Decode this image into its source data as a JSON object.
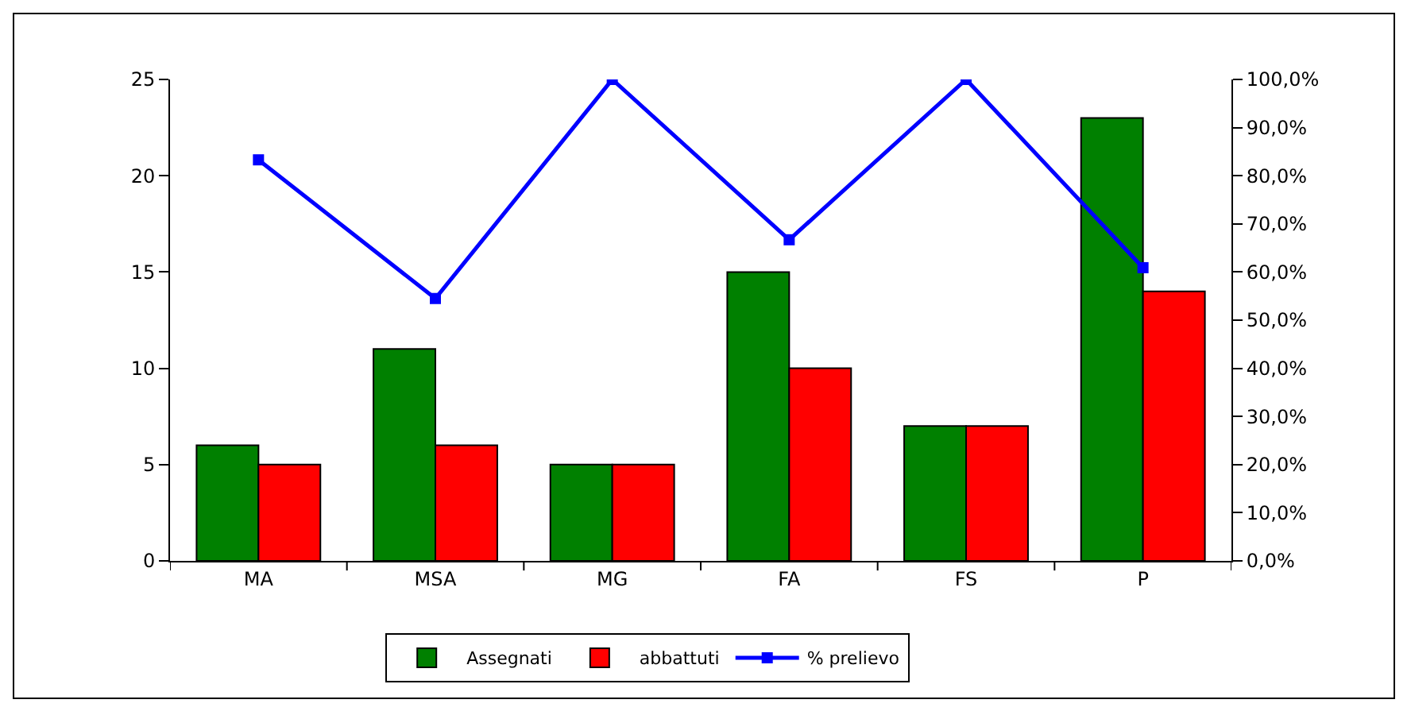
{
  "chart_data": {
    "type": "bar",
    "categories": [
      "MA",
      "MSA",
      "MG",
      "FA",
      "FS",
      "P"
    ],
    "series": [
      {
        "name": "Assegnati",
        "color": "#008000",
        "values": [
          6,
          11,
          5,
          15,
          7,
          23
        ]
      },
      {
        "name": "abbattuti",
        "color": "#ff0000",
        "values": [
          5,
          6,
          5,
          10,
          7,
          14
        ]
      },
      {
        "name": "% prelievo",
        "type": "line",
        "axis": "y2",
        "color": "#0000ff",
        "marker": "square",
        "line_style": "solid",
        "values": [
          83.3,
          54.5,
          100,
          66.7,
          100,
          60.9
        ]
      }
    ],
    "ylim": [
      0,
      25
    ],
    "yticks": [
      0,
      5,
      10,
      15,
      20,
      25
    ],
    "y2lim": [
      0,
      100
    ],
    "y2ticks": [
      {
        "value": 0,
        "label": "0,0%"
      },
      {
        "value": 10,
        "label": "10,0%"
      },
      {
        "value": 20,
        "label": "20,0%"
      },
      {
        "value": 30,
        "label": "30,0%"
      },
      {
        "value": 40,
        "label": "40,0%"
      },
      {
        "value": 50,
        "label": "50,0%"
      },
      {
        "value": 60,
        "label": "60,0%"
      },
      {
        "value": 70,
        "label": "70,0%"
      },
      {
        "value": 80,
        "label": "80,0%"
      },
      {
        "value": 90,
        "label": "90,0%"
      },
      {
        "value": 100,
        "label": "100,0%"
      }
    ],
    "grid": false,
    "legend": "bottom"
  }
}
